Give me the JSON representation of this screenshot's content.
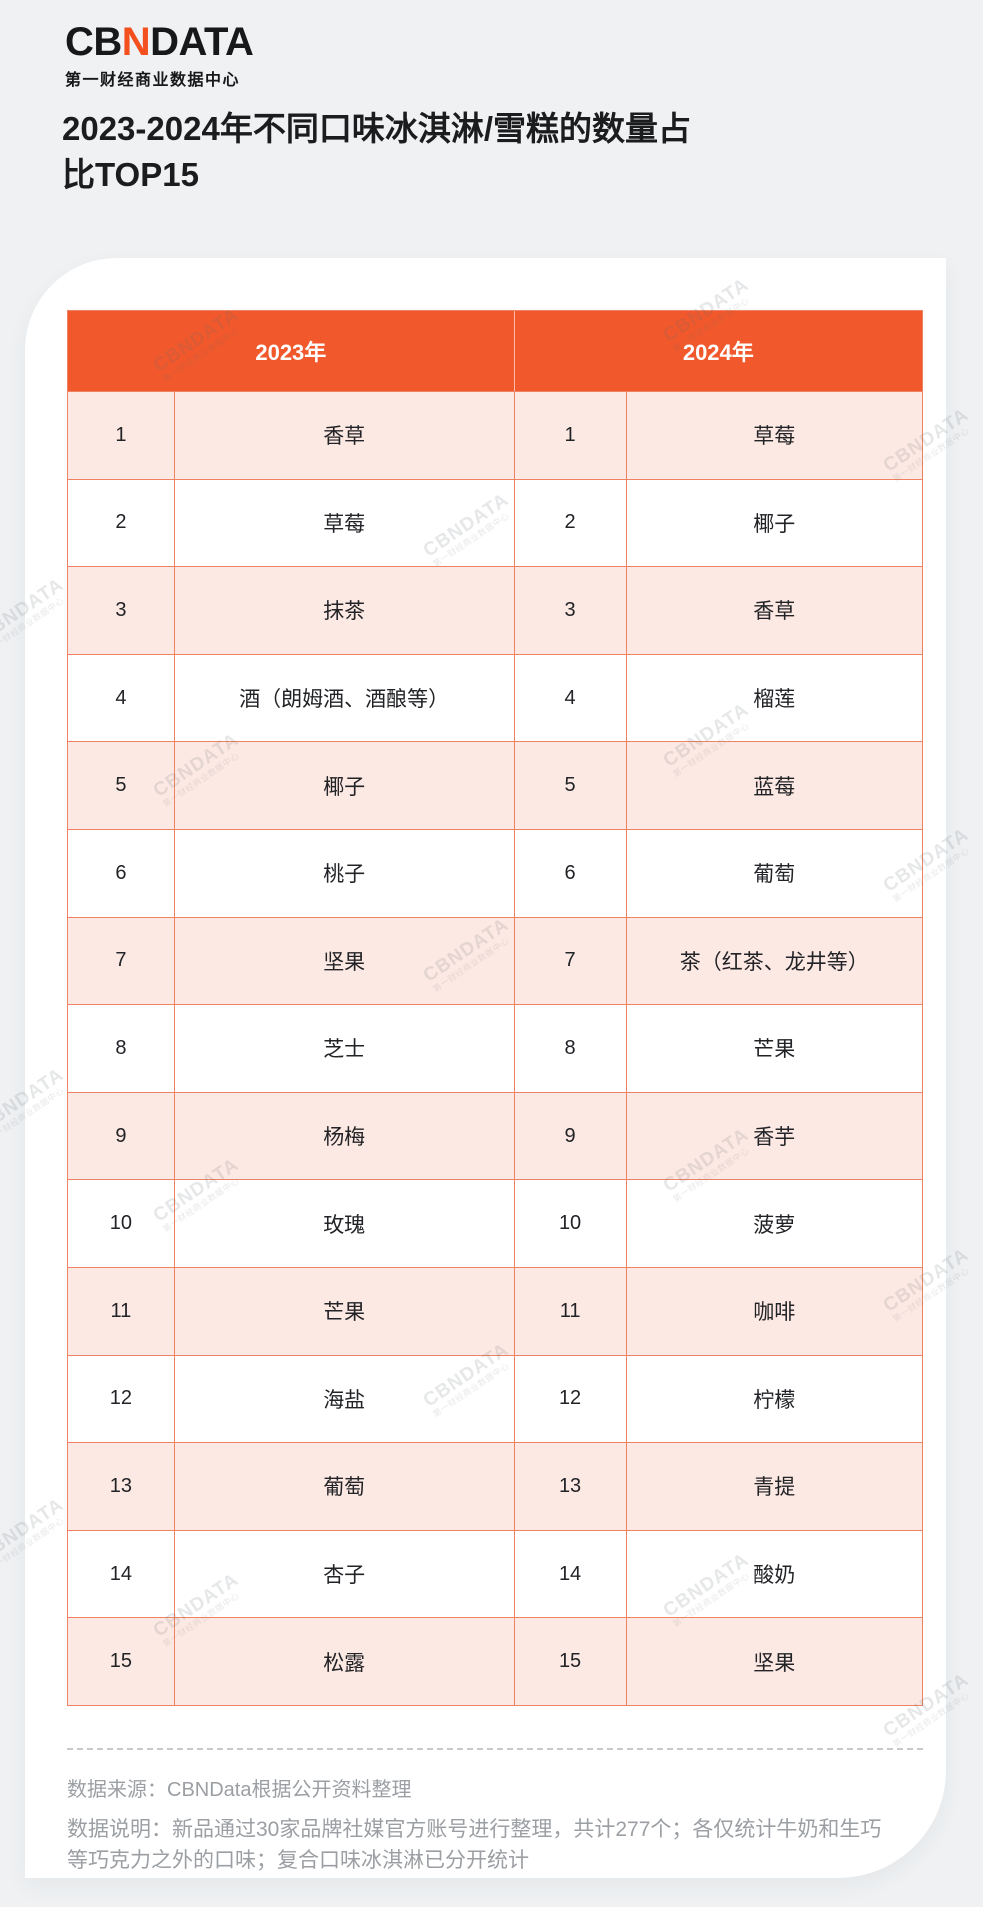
{
  "brand": {
    "logo_part1": "CB",
    "logo_accent": "N",
    "logo_part2": "DATA",
    "tagline": "第一财经商业数据中心"
  },
  "title": "2023-2024年不同口味冰淇淋/雪糕的数量占比TOP15",
  "chart_data": {
    "type": "table",
    "title": "2023-2024年不同口味冰淇淋/雪糕的数量占比TOP15",
    "columns": [
      {
        "label": "2023年"
      },
      {
        "label": "2024年"
      }
    ],
    "rows": [
      {
        "rank": "1",
        "y2023": "香草",
        "y2024": "草莓"
      },
      {
        "rank": "2",
        "y2023": "草莓",
        "y2024": "椰子"
      },
      {
        "rank": "3",
        "y2023": "抹茶",
        "y2024": "香草"
      },
      {
        "rank": "4",
        "y2023": "酒（朗姆酒、酒酿等）",
        "y2024": "榴莲"
      },
      {
        "rank": "5",
        "y2023": "椰子",
        "y2024": "蓝莓"
      },
      {
        "rank": "6",
        "y2023": "桃子",
        "y2024": "葡萄"
      },
      {
        "rank": "7",
        "y2023": "坚果",
        "y2024": "茶（红茶、龙井等）"
      },
      {
        "rank": "8",
        "y2023": "芝士",
        "y2024": "芒果"
      },
      {
        "rank": "9",
        "y2023": "杨梅",
        "y2024": "香芋"
      },
      {
        "rank": "10",
        "y2023": "玫瑰",
        "y2024": "菠萝"
      },
      {
        "rank": "11",
        "y2023": "芒果",
        "y2024": "咖啡"
      },
      {
        "rank": "12",
        "y2023": "海盐",
        "y2024": "柠檬"
      },
      {
        "rank": "13",
        "y2023": "葡萄",
        "y2024": "青提"
      },
      {
        "rank": "14",
        "y2023": "杏子",
        "y2024": "酸奶"
      },
      {
        "rank": "15",
        "y2023": "松露",
        "y2024": "坚果"
      }
    ]
  },
  "footer": {
    "source": "数据来源：CBNData根据公开资料整理",
    "note": "数据说明：新品通过30家品牌社媒官方账号进行整理，共计277个；各仅统计牛奶和生巧等巧克力之外的口味；复合口味冰淇淋已分开统计"
  },
  "watermark": {
    "line1": "CBNDATA",
    "line2": "第一财经商业数据中心"
  },
  "colors": {
    "background": "#EFF1F3",
    "card": "#FFFFFF",
    "header_orange": "#F1582B",
    "logo_accent_orange": "#F4501E",
    "row_pink": "#FCE9E3",
    "table_border": "#EE8262",
    "header_text": "#FFFFFF",
    "body_text": "#222327",
    "footer_gray": "#9B9FA3"
  }
}
